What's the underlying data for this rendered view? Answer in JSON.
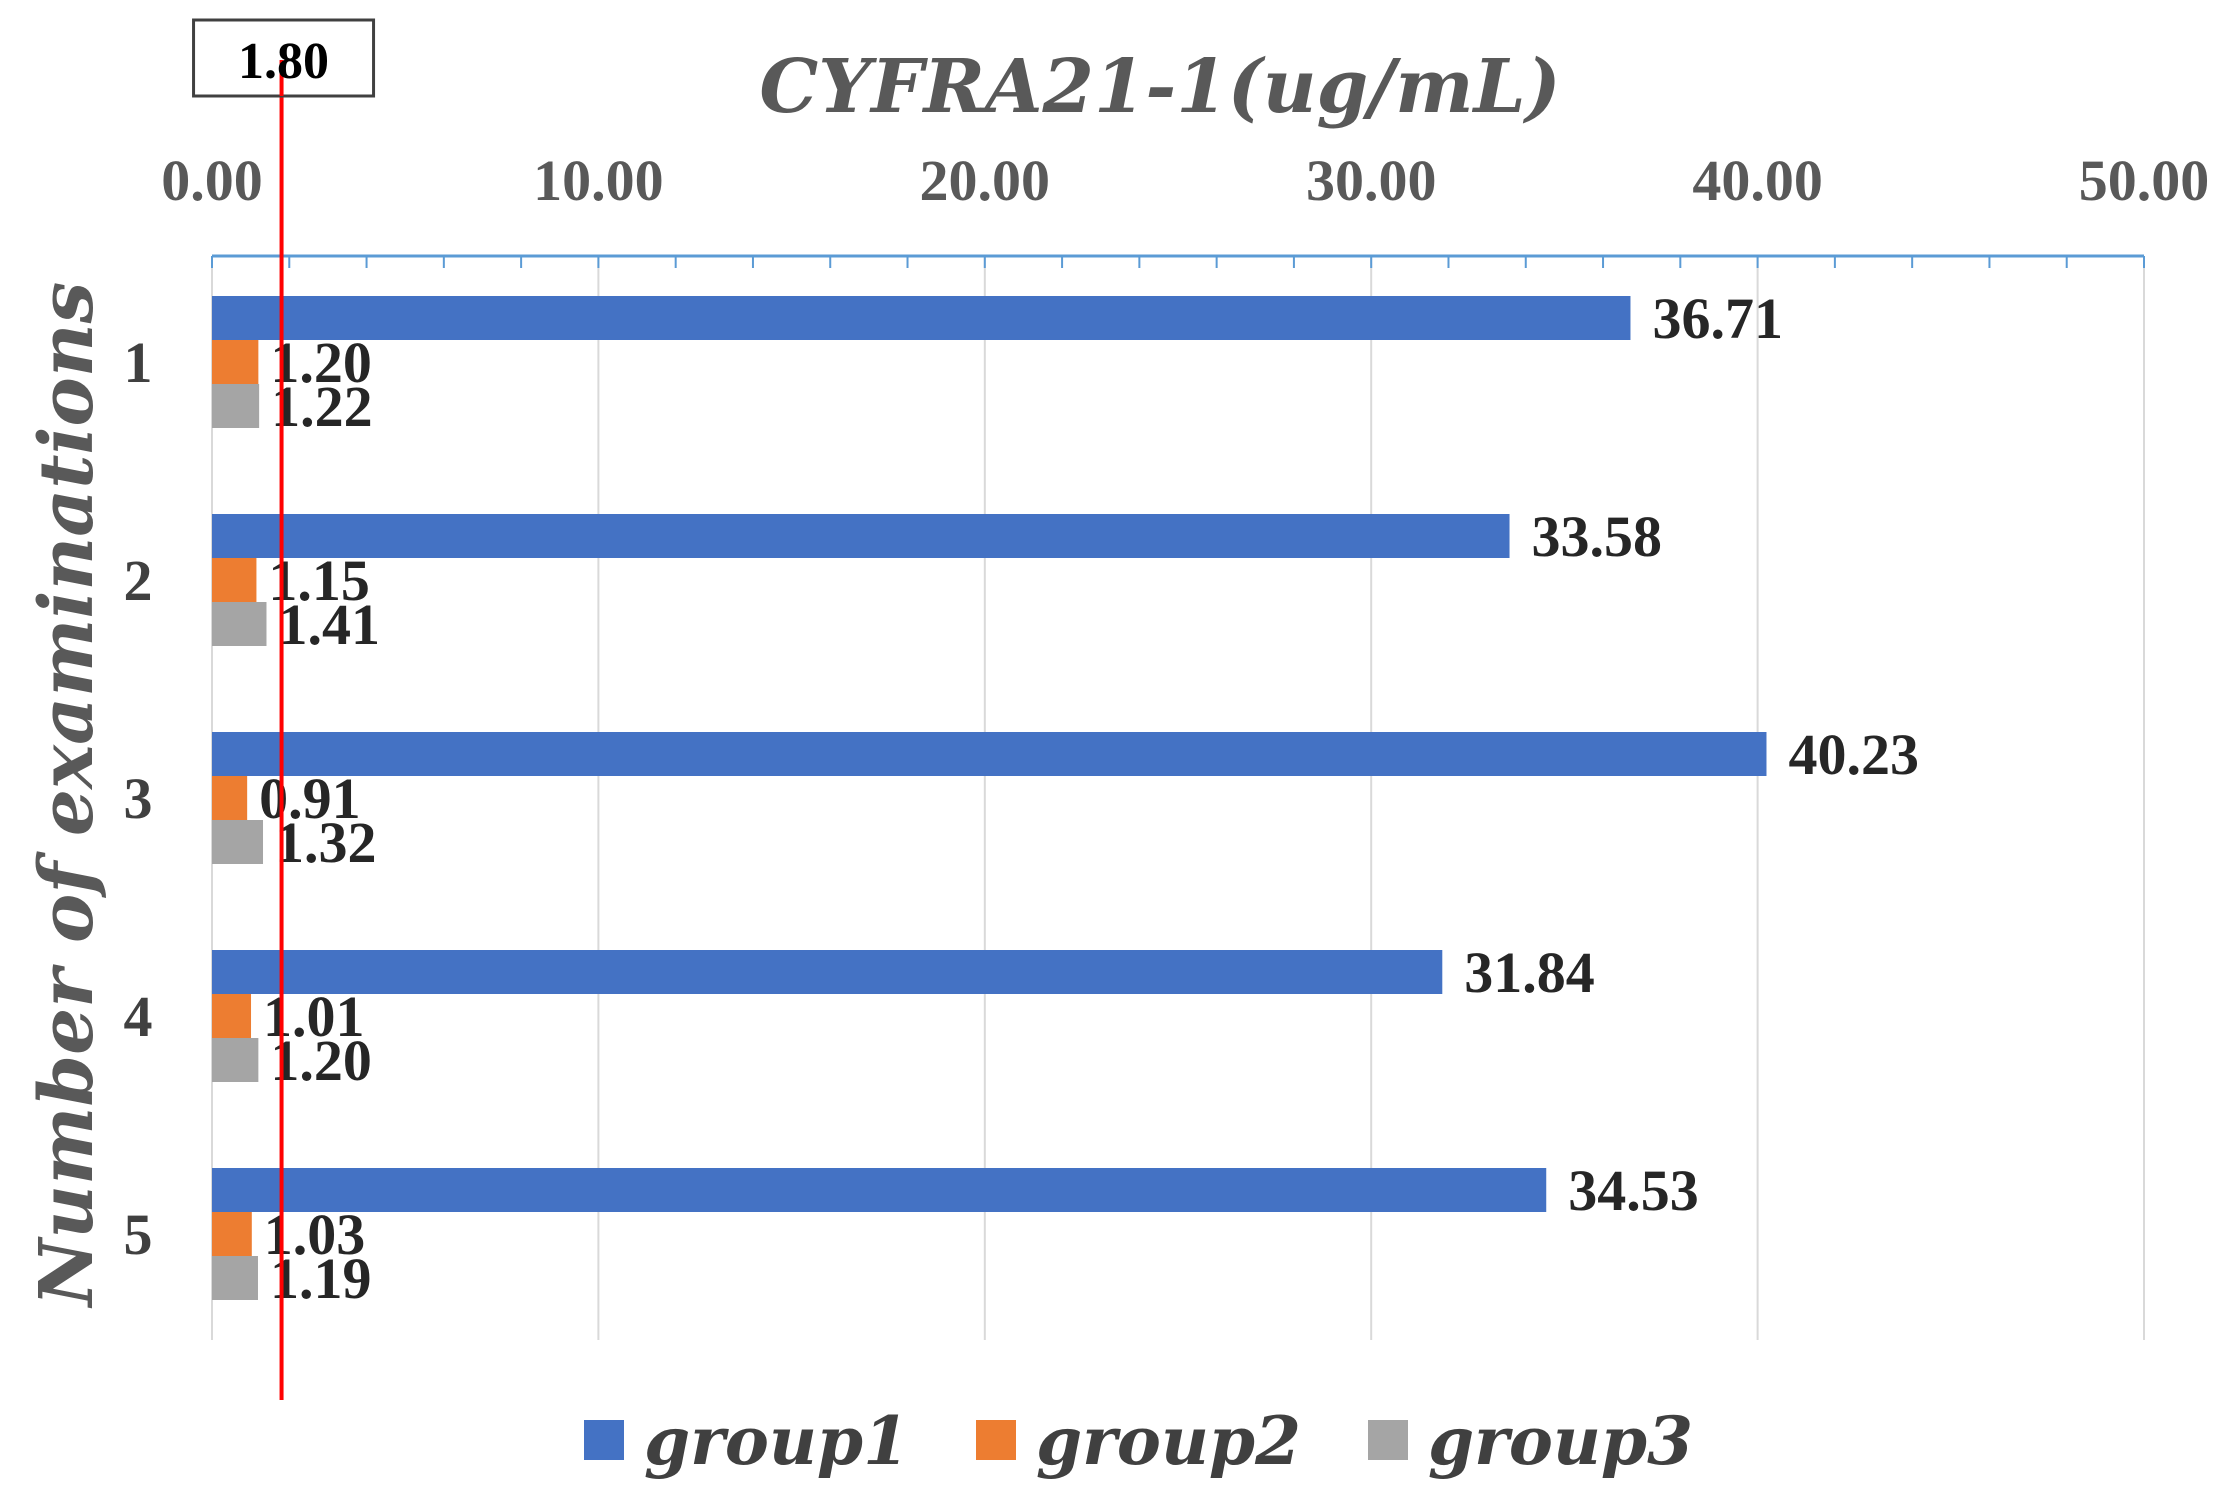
{
  "chart_data": {
    "type": "bar",
    "orientation": "horizontal",
    "title": "CYFRA21-1(ug/mL)",
    "xlabel": "CYFRA21-1(ug/mL)",
    "ylabel": "Number of examinations",
    "xlim": [
      0,
      50
    ],
    "xticks": [
      "0.00",
      "10.00",
      "20.00",
      "30.00",
      "40.00",
      "50.00"
    ],
    "xtick_values": [
      0,
      10,
      20,
      30,
      40,
      50
    ],
    "categories": [
      "1",
      "2",
      "3",
      "4",
      "5"
    ],
    "series": [
      {
        "name": "group1",
        "color": "#4472C4",
        "values": [
          36.71,
          33.58,
          40.23,
          31.84,
          34.53
        ],
        "labels": [
          "36.71",
          "33.58",
          "40.23",
          "31.84",
          "34.53"
        ]
      },
      {
        "name": "group2",
        "color": "#ED7D31",
        "values": [
          1.2,
          1.15,
          0.91,
          1.01,
          1.03
        ],
        "labels": [
          "1.20",
          "1.15",
          "0.91",
          "1.01",
          "1.03"
        ]
      },
      {
        "name": "group3",
        "color": "#A5A5A5",
        "values": [
          1.22,
          1.41,
          1.32,
          1.2,
          1.19
        ],
        "labels": [
          "1.22",
          "1.41",
          "1.32",
          "1.20",
          "1.19"
        ]
      }
    ],
    "threshold": {
      "value": 1.8,
      "label": "1.80",
      "color": "#FF0000"
    },
    "grid": true,
    "legend_position": "bottom",
    "axis_position": "top"
  }
}
